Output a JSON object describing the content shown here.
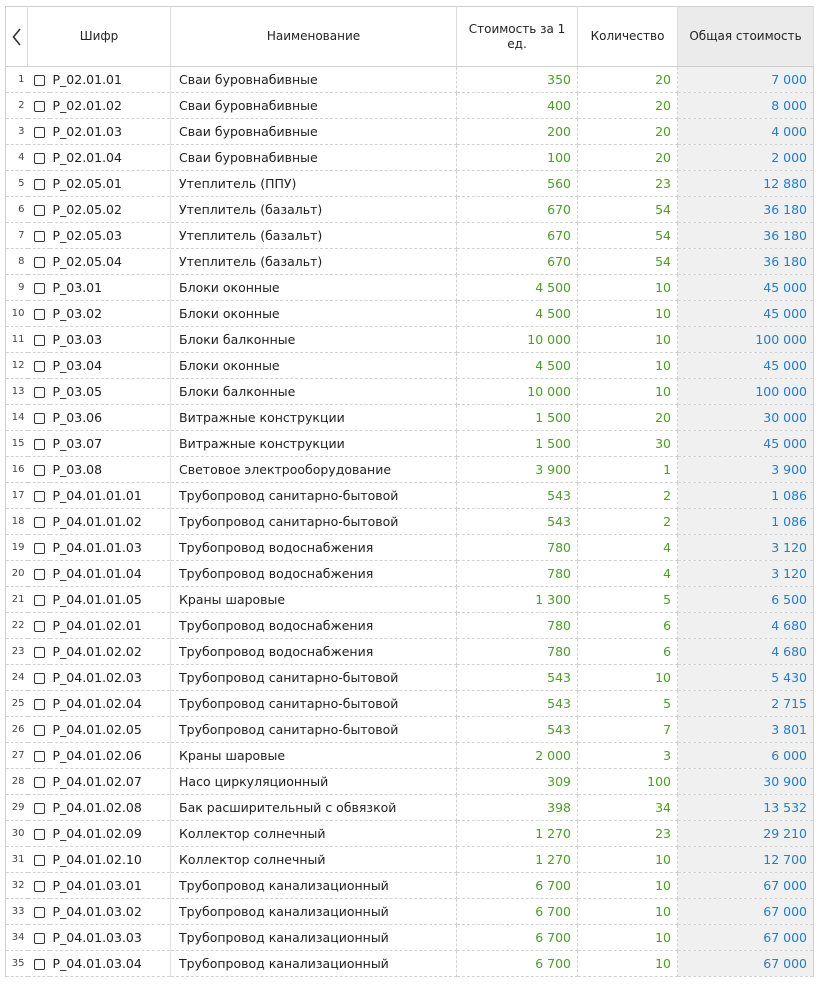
{
  "header": {
    "back_icon": "chevron-left-icon",
    "code": "Шифр",
    "name": "Наименование",
    "unit_cost": "Стоимость за 1 ед.",
    "quantity": "Количество",
    "total": "Общая стоимость"
  },
  "colors": {
    "price": "#4f9a2a",
    "quantity": "#4f9a2a",
    "total": "#2a7bc4",
    "total_bg": "#f0f0f0"
  },
  "rows": [
    {
      "n": "1",
      "code": "P_02.01.01",
      "name": "Сваи буровнабивные",
      "price": "350",
      "qty": "20",
      "total": "7 000"
    },
    {
      "n": "2",
      "code": "P_02.01.02",
      "name": "Сваи буровнабивные",
      "price": "400",
      "qty": "20",
      "total": "8 000"
    },
    {
      "n": "3",
      "code": "P_02.01.03",
      "name": "Сваи буровнабивные",
      "price": "200",
      "qty": "20",
      "total": "4 000"
    },
    {
      "n": "4",
      "code": "P_02.01.04",
      "name": "Сваи буровнабивные",
      "price": "100",
      "qty": "20",
      "total": "2 000"
    },
    {
      "n": "5",
      "code": "P_02.05.01",
      "name": "Утеплитель (ППУ)",
      "price": "560",
      "qty": "23",
      "total": "12 880"
    },
    {
      "n": "6",
      "code": "P_02.05.02",
      "name": "Утеплитель (базальт)",
      "price": "670",
      "qty": "54",
      "total": "36 180"
    },
    {
      "n": "7",
      "code": "P_02.05.03",
      "name": "Утеплитель (базальт)",
      "price": "670",
      "qty": "54",
      "total": "36 180"
    },
    {
      "n": "8",
      "code": "P_02.05.04",
      "name": "Утеплитель (базальт)",
      "price": "670",
      "qty": "54",
      "total": "36 180"
    },
    {
      "n": "9",
      "code": "P_03.01",
      "name": "Блоки оконные",
      "price": "4 500",
      "qty": "10",
      "total": "45 000"
    },
    {
      "n": "10",
      "code": "P_03.02",
      "name": "Блоки оконные",
      "price": "4 500",
      "qty": "10",
      "total": "45 000"
    },
    {
      "n": "11",
      "code": "P_03.03",
      "name": "Блоки балконные",
      "price": "10 000",
      "qty": "10",
      "total": "100 000"
    },
    {
      "n": "12",
      "code": "P_03.04",
      "name": "Блоки оконные",
      "price": "4 500",
      "qty": "10",
      "total": "45 000"
    },
    {
      "n": "13",
      "code": "P_03.05",
      "name": "Блоки балконные",
      "price": "10 000",
      "qty": "10",
      "total": "100 000"
    },
    {
      "n": "14",
      "code": "P_03.06",
      "name": "Витражные конструкции",
      "price": "1 500",
      "qty": "20",
      "total": "30 000"
    },
    {
      "n": "15",
      "code": "P_03.07",
      "name": "Витражные конструкции",
      "price": "1 500",
      "qty": "30",
      "total": "45 000"
    },
    {
      "n": "16",
      "code": "P_03.08",
      "name": "Световое электрооборудование",
      "price": "3 900",
      "qty": "1",
      "total": "3 900"
    },
    {
      "n": "17",
      "code": "P_04.01.01.01",
      "name": "Трубопровод санитарно-бытовой",
      "price": "543",
      "qty": "2",
      "total": "1 086"
    },
    {
      "n": "18",
      "code": "P_04.01.01.02",
      "name": "Трубопровод санитарно-бытовой",
      "price": "543",
      "qty": "2",
      "total": "1 086"
    },
    {
      "n": "19",
      "code": "P_04.01.01.03",
      "name": "Трубопровод водоснабжения",
      "price": "780",
      "qty": "4",
      "total": "3 120"
    },
    {
      "n": "20",
      "code": "P_04.01.01.04",
      "name": "Трубопровод водоснабжения",
      "price": "780",
      "qty": "4",
      "total": "3 120"
    },
    {
      "n": "21",
      "code": "P_04.01.01.05",
      "name": "Краны шаровые",
      "price": "1 300",
      "qty": "5",
      "total": "6 500"
    },
    {
      "n": "22",
      "code": "P_04.01.02.01",
      "name": "Трубопровод водоснабжения",
      "price": "780",
      "qty": "6",
      "total": "4 680"
    },
    {
      "n": "23",
      "code": "P_04.01.02.02",
      "name": "Трубопровод водоснабжения",
      "price": "780",
      "qty": "6",
      "total": "4 680"
    },
    {
      "n": "24",
      "code": "P_04.01.02.03",
      "name": "Трубопровод санитарно-бытовой",
      "price": "543",
      "qty": "10",
      "total": "5 430"
    },
    {
      "n": "25",
      "code": "P_04.01.02.04",
      "name": "Трубопровод санитарно-бытовой",
      "price": "543",
      "qty": "5",
      "total": "2 715"
    },
    {
      "n": "26",
      "code": "P_04.01.02.05",
      "name": "Трубопровод санитарно-бытовой",
      "price": "543",
      "qty": "7",
      "total": "3 801"
    },
    {
      "n": "27",
      "code": "P_04.01.02.06",
      "name": "Краны шаровые",
      "price": "2 000",
      "qty": "3",
      "total": "6 000"
    },
    {
      "n": "28",
      "code": "P_04.01.02.07",
      "name": "Насо циркуляционный",
      "price": "309",
      "qty": "100",
      "total": "30 900"
    },
    {
      "n": "29",
      "code": "P_04.01.02.08",
      "name": "Бак расширительный с обвязкой",
      "price": "398",
      "qty": "34",
      "total": "13 532"
    },
    {
      "n": "30",
      "code": "P_04.01.02.09",
      "name": "Коллектор солнечный",
      "price": "1 270",
      "qty": "23",
      "total": "29 210"
    },
    {
      "n": "31",
      "code": "P_04.01.02.10",
      "name": "Коллектор солнечный",
      "price": "1 270",
      "qty": "10",
      "total": "12 700"
    },
    {
      "n": "32",
      "code": "P_04.01.03.01",
      "name": "Трубопровод канализационный",
      "price": "6 700",
      "qty": "10",
      "total": "67 000"
    },
    {
      "n": "33",
      "code": "P_04.01.03.02",
      "name": "Трубопровод канализационный",
      "price": "6 700",
      "qty": "10",
      "total": "67 000"
    },
    {
      "n": "34",
      "code": "P_04.01.03.03",
      "name": "Трубопровод канализационный",
      "price": "6 700",
      "qty": "10",
      "total": "67 000"
    },
    {
      "n": "35",
      "code": "P_04.01.03.04",
      "name": "Трубопровод канализационный",
      "price": "6 700",
      "qty": "10",
      "total": "67 000"
    }
  ]
}
